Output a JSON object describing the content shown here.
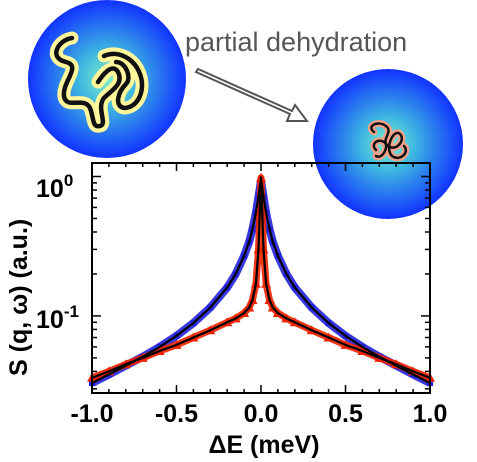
{
  "annotation": "partial dehydration",
  "colors": {
    "blue_series": "#2222dd",
    "red_series": "#ee2200",
    "fit_line": "#000000",
    "sphere_center": "#7ff0c8",
    "sphere_edge": "#1133ff",
    "chain_halo": "#fff59a"
  },
  "icons": [
    "hydrated-protein-sphere-icon",
    "dehydrated-protein-sphere-icon",
    "arrow-right-down-icon"
  ],
  "chart_data": {
    "type": "line",
    "xlabel": "ΔE (meV)",
    "ylabel": "S (q, ω) (a.u.)",
    "xlim": [
      -1.0,
      1.0
    ],
    "ylim": [
      0.028,
      1.25
    ],
    "yscale": "log",
    "xticks": [
      -1.0,
      -0.5,
      0.0,
      0.5,
      1.0
    ],
    "xtick_labels": [
      "-1.0",
      "-0.5",
      "0.0",
      "0.5",
      "1.0"
    ],
    "yticks": [
      1.0,
      0.1
    ],
    "ytick_labels": [
      "10^0",
      "10^-1"
    ],
    "grid": false,
    "series": [
      {
        "color": "blue",
        "style": "points",
        "x": [
          -1.0,
          -0.9,
          -0.8,
          -0.7,
          -0.6,
          -0.5,
          -0.4,
          -0.3,
          -0.2,
          -0.15,
          -0.1,
          -0.07,
          -0.05,
          -0.03,
          -0.015,
          0.0,
          0.015,
          0.03,
          0.05,
          0.07,
          0.1,
          0.15,
          0.2,
          0.3,
          0.4,
          0.5,
          0.6,
          0.7,
          0.8,
          0.9,
          1.0
        ],
        "y": [
          0.033,
          0.038,
          0.044,
          0.051,
          0.06,
          0.072,
          0.089,
          0.115,
          0.16,
          0.2,
          0.27,
          0.34,
          0.42,
          0.55,
          0.72,
          0.93,
          0.72,
          0.55,
          0.42,
          0.34,
          0.27,
          0.2,
          0.16,
          0.115,
          0.089,
          0.072,
          0.06,
          0.051,
          0.044,
          0.038,
          0.033
        ]
      },
      {
        "color": "red",
        "style": "triangles",
        "x": [
          -1.0,
          -0.9,
          -0.8,
          -0.7,
          -0.6,
          -0.5,
          -0.4,
          -0.3,
          -0.2,
          -0.15,
          -0.1,
          -0.07,
          -0.05,
          -0.03,
          -0.015,
          0.0,
          0.015,
          0.03,
          0.05,
          0.07,
          0.1,
          0.15,
          0.2,
          0.3,
          0.4,
          0.5,
          0.6,
          0.7,
          0.8,
          0.9,
          1.0
        ],
        "y": [
          0.036,
          0.04,
          0.045,
          0.05,
          0.056,
          0.062,
          0.07,
          0.079,
          0.09,
          0.096,
          0.105,
          0.115,
          0.13,
          0.17,
          0.3,
          0.98,
          0.3,
          0.17,
          0.13,
          0.115,
          0.105,
          0.096,
          0.09,
          0.079,
          0.07,
          0.062,
          0.056,
          0.05,
          0.045,
          0.04,
          0.036
        ]
      },
      {
        "color": "black",
        "style": "line",
        "x": [
          -1.0,
          -0.9,
          -0.8,
          -0.7,
          -0.6,
          -0.5,
          -0.4,
          -0.3,
          -0.2,
          -0.15,
          -0.1,
          -0.07,
          -0.05,
          -0.03,
          -0.015,
          0.0,
          0.015,
          0.03,
          0.05,
          0.07,
          0.1,
          0.15,
          0.2,
          0.3,
          0.4,
          0.5,
          0.6,
          0.7,
          0.8,
          0.9,
          1.0
        ],
        "y": [
          0.036,
          0.04,
          0.045,
          0.05,
          0.056,
          0.062,
          0.07,
          0.079,
          0.09,
          0.096,
          0.105,
          0.115,
          0.13,
          0.17,
          0.3,
          1.0,
          0.3,
          0.17,
          0.13,
          0.115,
          0.105,
          0.096,
          0.09,
          0.079,
          0.07,
          0.062,
          0.056,
          0.05,
          0.045,
          0.04,
          0.036
        ]
      },
      {
        "color": "black",
        "style": "line",
        "x": [
          -1.0,
          -0.9,
          -0.8,
          -0.7,
          -0.6,
          -0.5,
          -0.4,
          -0.3,
          -0.2,
          -0.15,
          -0.1,
          -0.07,
          -0.05,
          -0.03,
          -0.015,
          0.0,
          0.015,
          0.03,
          0.05,
          0.07,
          0.1,
          0.15,
          0.2,
          0.3,
          0.4,
          0.5,
          0.6,
          0.7,
          0.8,
          0.9,
          1.0
        ],
        "y": [
          0.033,
          0.038,
          0.044,
          0.051,
          0.06,
          0.072,
          0.089,
          0.115,
          0.16,
          0.2,
          0.27,
          0.34,
          0.42,
          0.55,
          0.72,
          0.95,
          0.72,
          0.55,
          0.42,
          0.34,
          0.27,
          0.2,
          0.16,
          0.115,
          0.089,
          0.072,
          0.06,
          0.051,
          0.044,
          0.038,
          0.033
        ]
      }
    ]
  }
}
